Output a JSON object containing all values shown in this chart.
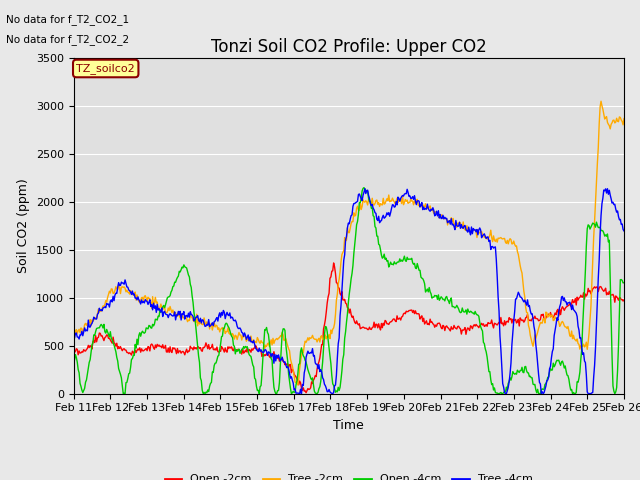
{
  "title": "Tonzi Soil CO2 Profile: Upper CO2",
  "xlabel": "Time",
  "ylabel": "Soil CO2 (ppm)",
  "ylim": [
    0,
    3500
  ],
  "legend_entries": [
    "Open -2cm",
    "Tree -2cm",
    "Open -4cm",
    "Tree -4cm"
  ],
  "legend_colors": [
    "#ff0000",
    "#ffaa00",
    "#00cc00",
    "#0000ff"
  ],
  "no_data_text": [
    "No data for f_T2_CO2_1",
    "No data for f_T2_CO2_2"
  ],
  "inset_label": "TZ_soilco2",
  "fig_bg_color": "#e8e8e8",
  "plot_bg_color": "#e0e0e0",
  "grid_color": "#ffffff",
  "xtick_labels": [
    "Feb 11",
    "Feb 12",
    "Feb 13",
    "Feb 14",
    "Feb 15",
    "Feb 16",
    "Feb 17",
    "Feb 18",
    "Feb 19",
    "Feb 20",
    "Feb 21",
    "Feb 22",
    "Feb 23",
    "Feb 24",
    "Feb 25",
    "Feb 26"
  ],
  "title_fontsize": 12,
  "axis_fontsize": 9,
  "tick_fontsize": 8
}
